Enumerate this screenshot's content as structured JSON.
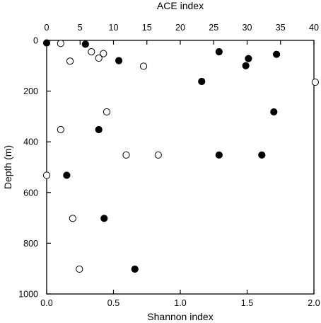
{
  "chart_data": {
    "type": "scatter",
    "title": "",
    "xlabel": "Shannon index",
    "x2label": "ACE index",
    "ylabel": "Depth (m)",
    "xlim": [
      0,
      2.0
    ],
    "x2lim": [
      0,
      40
    ],
    "ylim": [
      0,
      1000
    ],
    "y_inverted": true,
    "grid": false,
    "x_ticks": [
      "0.0",
      "0.5",
      "1.0",
      "1.5",
      "2.0"
    ],
    "x2_ticks": [
      "0",
      "5",
      "10",
      "15",
      "20",
      "25",
      "30",
      "35",
      "40"
    ],
    "y_ticks": [
      "0",
      "200",
      "400",
      "600",
      "800",
      "1000"
    ],
    "series": [
      {
        "axis": "bottom",
        "marker": "filled-circle",
        "color": "#000000",
        "points": [
          {
            "x": 0.0,
            "y": 10
          },
          {
            "x": 0.29,
            "y": 15
          },
          {
            "x": 0.54,
            "y": 80
          },
          {
            "x": 1.29,
            "y": 45
          },
          {
            "x": 1.51,
            "y": 72
          },
          {
            "x": 1.49,
            "y": 100
          },
          {
            "x": 1.72,
            "y": 55
          },
          {
            "x": 1.16,
            "y": 162
          },
          {
            "x": 1.7,
            "y": 282
          },
          {
            "x": 0.39,
            "y": 352
          },
          {
            "x": 1.29,
            "y": 452
          },
          {
            "x": 1.61,
            "y": 452
          },
          {
            "x": 0.15,
            "y": 532
          },
          {
            "x": 0.43,
            "y": 702
          },
          {
            "x": 0.66,
            "y": 902
          }
        ]
      },
      {
        "axis": "top",
        "marker": "open-circle",
        "color": "#000000",
        "points": [
          {
            "x": 2.1,
            "y": 12
          },
          {
            "x": 8.5,
            "y": 52
          },
          {
            "x": 6.7,
            "y": 45
          },
          {
            "x": 3.5,
            "y": 82
          },
          {
            "x": 7.8,
            "y": 70
          },
          {
            "x": 14.5,
            "y": 102
          },
          {
            "x": 40.2,
            "y": 165
          },
          {
            "x": 9.0,
            "y": 282
          },
          {
            "x": 2.1,
            "y": 352
          },
          {
            "x": 11.9,
            "y": 452
          },
          {
            "x": 16.7,
            "y": 452
          },
          {
            "x": 0.0,
            "y": 532
          },
          {
            "x": 3.9,
            "y": 702
          },
          {
            "x": 4.9,
            "y": 902
          }
        ]
      }
    ]
  }
}
